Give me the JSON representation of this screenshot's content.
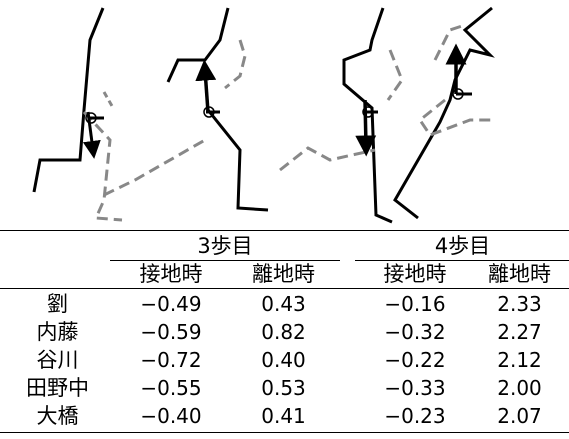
{
  "table": {
    "group_headers": [
      "3歩目",
      "4歩目"
    ],
    "sub_headers": [
      "接地時",
      "離地時",
      "接地時",
      "離地時"
    ],
    "rows": [
      {
        "name": "劉",
        "values": [
          "−0.49",
          "0.43",
          "−0.16",
          "2.33"
        ]
      },
      {
        "name": "内藤",
        "values": [
          "−0.59",
          "0.82",
          "−0.32",
          "2.27"
        ]
      },
      {
        "name": "谷川",
        "values": [
          "−0.72",
          "0.40",
          "−0.22",
          "2.12"
        ]
      },
      {
        "name": "田野中",
        "values": [
          "−0.55",
          "0.53",
          "−0.33",
          "2.00"
        ]
      },
      {
        "name": "大橋",
        "values": [
          "−0.40",
          "0.41",
          "−0.23",
          "2.07"
        ]
      }
    ]
  }
}
